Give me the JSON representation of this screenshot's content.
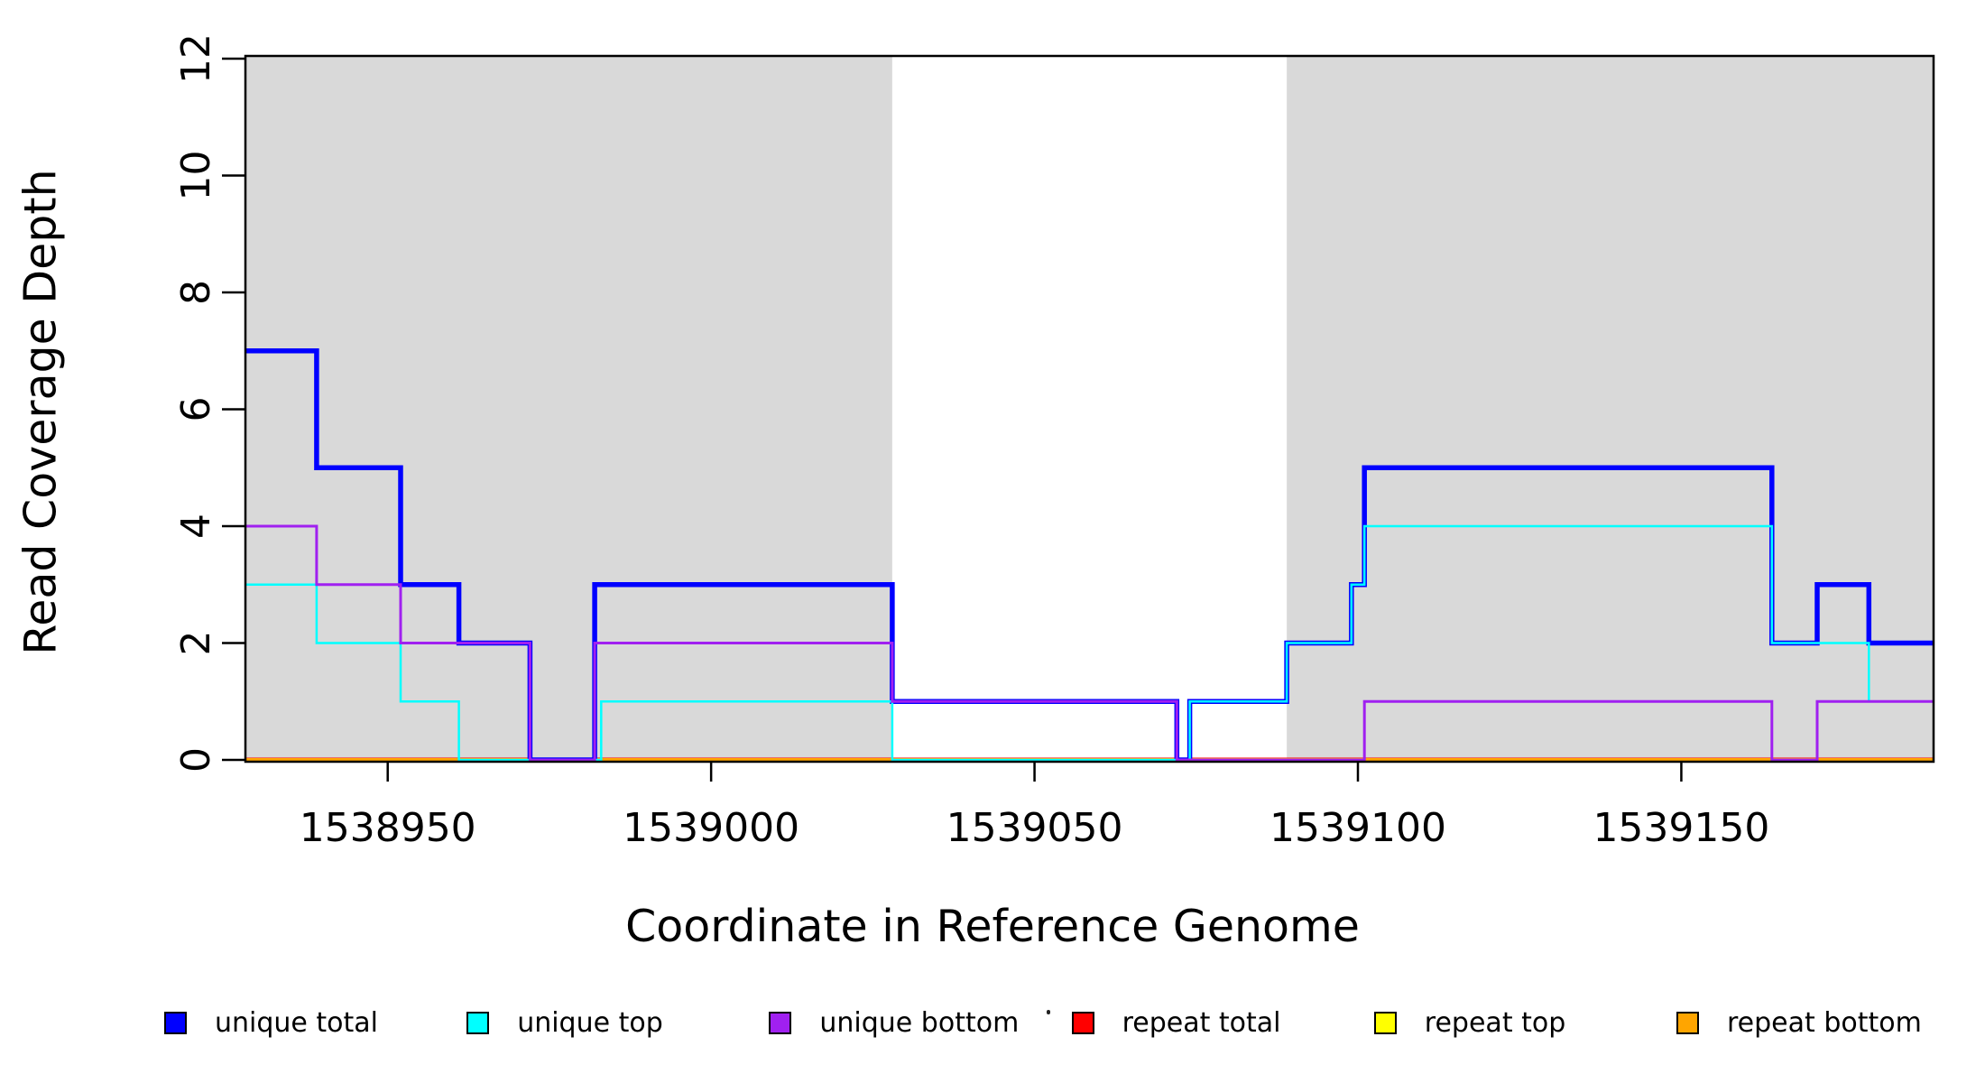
{
  "chart_data": {
    "type": "line",
    "subtype": "step-coverage-plot",
    "title": "",
    "xlabel": "Coordinate in Reference Genome",
    "ylabel": "Read Coverage Depth",
    "xlim": [
      1538928,
      1539189
    ],
    "ylim": [
      0,
      12
    ],
    "x_ticks": [
      1538950,
      1539000,
      1539050,
      1539100,
      1539150
    ],
    "x_tick_labels": [
      "1538950",
      "1539000",
      "1539050",
      "1539100",
      "1539150"
    ],
    "y_ticks": [
      0,
      2,
      4,
      6,
      8,
      10,
      12
    ],
    "y_tick_labels": [
      "0",
      "2",
      "4",
      "6",
      "8",
      "10",
      "12"
    ],
    "grid": false,
    "legend_position": "bottom",
    "background_color": "#ffffff",
    "shaded_regions": [
      {
        "x0": 1538928,
        "x1": 1539028,
        "color": "#d9d9d9"
      },
      {
        "x0": 1539089,
        "x1": 1539189,
        "color": "#d9d9d9"
      }
    ],
    "series": [
      {
        "name": "unique total",
        "color": "#0000ff",
        "start": 7,
        "steps": [
          [
            1538939,
            5
          ],
          [
            1538952,
            3
          ],
          [
            1538961,
            2
          ],
          [
            1538972,
            0
          ],
          [
            1538982,
            3
          ],
          [
            1539028,
            1
          ],
          [
            1539072,
            0
          ],
          [
            1539074,
            1
          ],
          [
            1539089,
            2
          ],
          [
            1539099,
            3
          ],
          [
            1539101,
            5
          ],
          [
            1539164,
            2
          ],
          [
            1539171,
            3
          ],
          [
            1539179,
            2
          ]
        ]
      },
      {
        "name": "unique top",
        "color": "#00ffff",
        "start": 3,
        "steps": [
          [
            1538939,
            2
          ],
          [
            1538952,
            1
          ],
          [
            1538961,
            0
          ],
          [
            1538983,
            1
          ],
          [
            1539028,
            0
          ],
          [
            1539074,
            1
          ],
          [
            1539089,
            2
          ],
          [
            1539099,
            3
          ],
          [
            1539101,
            4
          ],
          [
            1539164,
            2
          ],
          [
            1539179,
            1
          ]
        ]
      },
      {
        "name": "unique bottom",
        "color": "#a020f0",
        "start": 4,
        "steps": [
          [
            1538939,
            3
          ],
          [
            1538952,
            2
          ],
          [
            1538972,
            0
          ],
          [
            1538982,
            2
          ],
          [
            1539028,
            1
          ],
          [
            1539072,
            0
          ],
          [
            1539101,
            1
          ],
          [
            1539164,
            0
          ],
          [
            1539171,
            1
          ]
        ]
      },
      {
        "name": "repeat total",
        "color": "#ff0000",
        "start": 0,
        "steps": []
      },
      {
        "name": "repeat top",
        "color": "#ffff00",
        "start": 0,
        "steps": []
      },
      {
        "name": "repeat bottom",
        "color": "#ffa500",
        "start": 0,
        "steps": []
      }
    ]
  },
  "legend": {
    "items": [
      {
        "label": "unique total",
        "color": "#0000ff"
      },
      {
        "label": "unique top",
        "color": "#00ffff"
      },
      {
        "label": "unique bottom",
        "color": "#a020f0"
      },
      {
        "label": "repeat total",
        "color": "#ff0000"
      },
      {
        "label": "repeat top",
        "color": "#ffff00"
      },
      {
        "label": "repeat bottom",
        "color": "#ffa500"
      }
    ]
  }
}
